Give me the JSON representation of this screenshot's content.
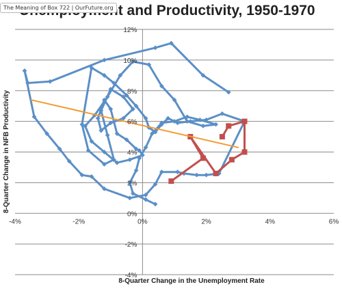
{
  "browser_tab": {
    "label": "The Meaning of Box 722 | OurFuture.org"
  },
  "chart_data": {
    "type": "scatter",
    "title": "Unemployment and Productivity, 1950-1970",
    "xlabel": "8-Quarter Change in the Unemployment Rate",
    "ylabel": "8-Quarter Change in NFB Productivity",
    "xlim": [
      -4,
      6
    ],
    "ylim": [
      -4,
      12
    ],
    "grid": true,
    "x_ticks": [
      "-4%",
      "-2%",
      "0%",
      "2%",
      "4%",
      "6%"
    ],
    "y_ticks": [
      "-4%",
      "-2%",
      "0%",
      "2%",
      "4%",
      "6%",
      "8%",
      "10%",
      "12%"
    ],
    "series": [
      {
        "color": "#5b8fc7",
        "mode": "lines+markers",
        "x": [
          2.7,
          1.9,
          0.9,
          0.4,
          -1.2,
          -2.9,
          -3.6,
          -3.7,
          -3.4,
          -3.0,
          -2.6,
          -2.3,
          -1.9,
          -1.6,
          -1.2,
          -0.4,
          0.1,
          0.4,
          0.6,
          1.1,
          1.3,
          1.7,
          2.0,
          2.4,
          3.2,
          2.5,
          2.0,
          1.5,
          1.1,
          0.8,
          0.6,
          0.4,
          0.2,
          0.1,
          -0.2,
          -0.5,
          -0.9,
          -1.2,
          -1.6,
          -1.9,
          -1.7,
          -1.2,
          -0.9,
          -1.1,
          -1.3,
          -1.0,
          -0.6,
          -0.3,
          -0.6,
          -1.0,
          -1.3,
          -1.4,
          -1.2,
          -1.0,
          -0.8,
          -0.5,
          -0.2,
          -0.1,
          0.0,
          -0.4,
          -0.8,
          -1.2,
          -1.6,
          -1.8,
          -1.5,
          -1.1,
          -0.7,
          -0.3,
          0.2,
          0.6,
          1.0,
          1.4,
          1.9,
          2.3,
          1.8,
          1.4,
          1.0,
          0.6,
          0.3,
          0.1,
          -0.1,
          -0.2,
          -0.4,
          -0.3,
          0.1,
          0.4
        ],
        "y": [
          7.9,
          9.0,
          11.1,
          10.8,
          10.0,
          8.6,
          8.5,
          9.3,
          6.3,
          5.2,
          4.2,
          3.4,
          2.5,
          2.4,
          1.6,
          1.0,
          1.2,
          1.9,
          2.7,
          2.7,
          2.6,
          2.5,
          2.5,
          2.6,
          6.0,
          6.5,
          6.1,
          6.0,
          5.9,
          6.2,
          5.8,
          5.3,
          5.6,
          6.2,
          7.0,
          7.7,
          8.5,
          9.0,
          9.5,
          5.8,
          4.1,
          3.2,
          3.5,
          5.1,
          6.7,
          8.1,
          7.6,
          6.8,
          6.2,
          5.9,
          5.4,
          6.2,
          7.4,
          6.8,
          5.2,
          4.8,
          4.2,
          4.1,
          3.8,
          3.5,
          3.3,
          4.0,
          4.7,
          5.7,
          6.4,
          7.6,
          9.0,
          9.9,
          9.7,
          8.3,
          7.4,
          6.0,
          5.7,
          5.8,
          6.1,
          6.3,
          6.0,
          5.9,
          5.2,
          4.3,
          3.6,
          2.8,
          2.0,
          1.3,
          0.9,
          0.6
        ]
      },
      {
        "color": "#c0504d",
        "mode": "lines+markers",
        "x": [
          0.9,
          1.9,
          1.5,
          2.3,
          2.8,
          3.2,
          3.2,
          2.7,
          2.5
        ],
        "y": [
          2.1,
          3.6,
          5.0,
          2.6,
          3.5,
          4.0,
          6.0,
          5.7,
          5.0
        ]
      },
      {
        "color": "#f59a2e",
        "mode": "line",
        "x": [
          -3.5,
          3.0
        ],
        "y": [
          7.4,
          4.3
        ]
      }
    ]
  }
}
